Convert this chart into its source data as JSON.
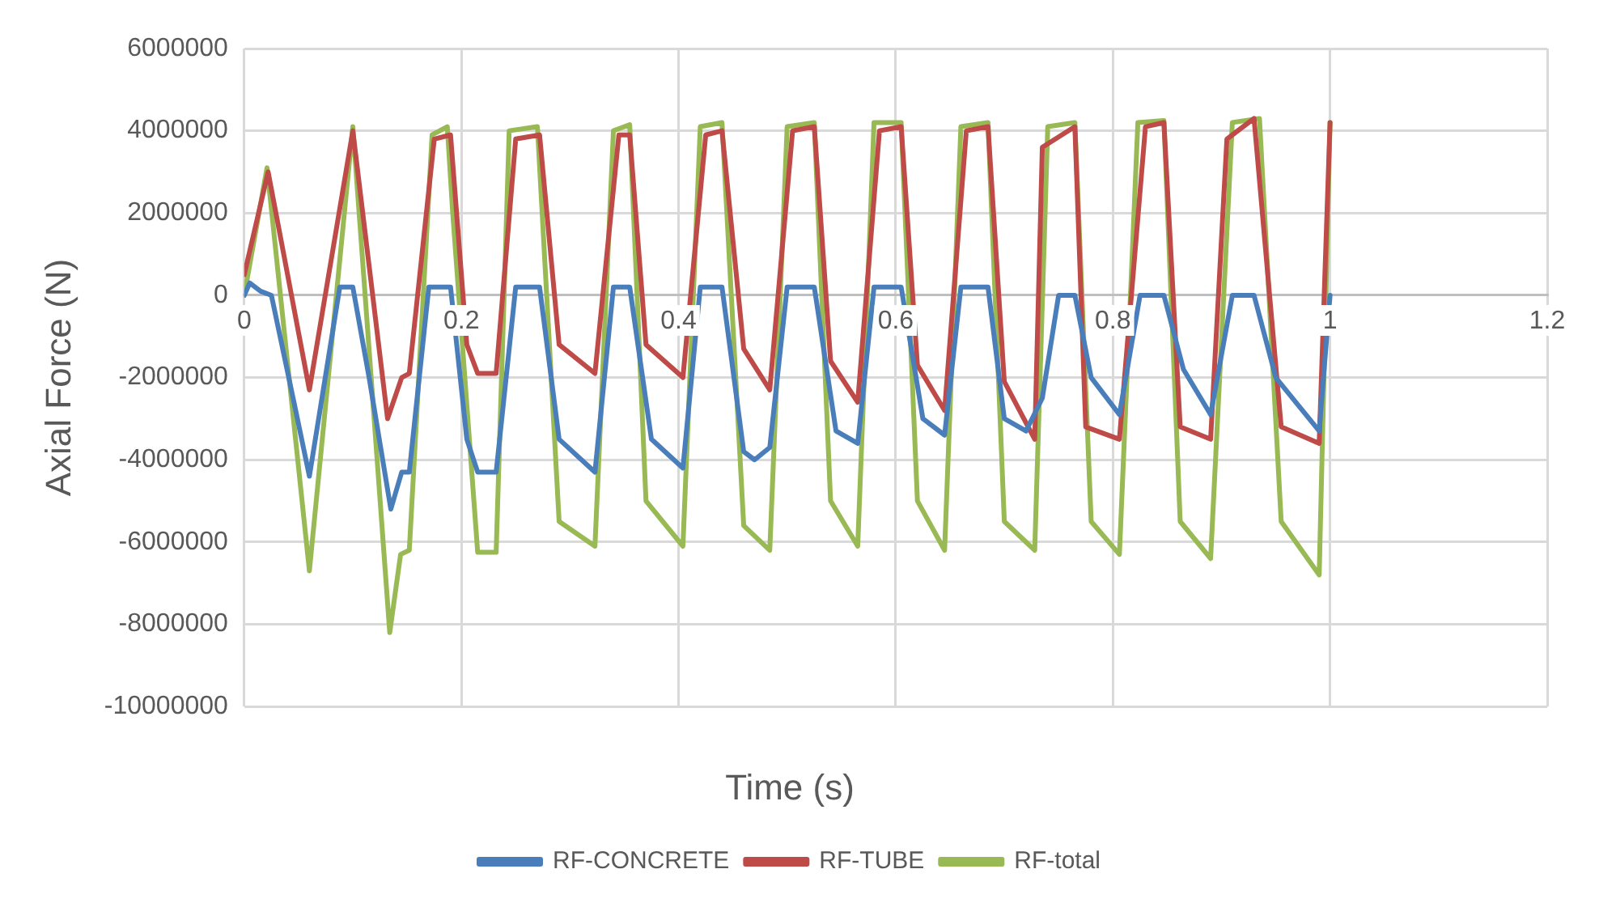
{
  "chart_data": {
    "type": "line",
    "xlabel": "Time (s)",
    "ylabel": "Axial Force (N)",
    "xlim": [
      0,
      1.2
    ],
    "xticks": [
      0,
      0.2,
      0.4,
      0.6,
      0.8,
      1,
      1.2
    ],
    "ylim": [
      -10000000,
      6000000
    ],
    "yticks": [
      -10000000,
      -8000000,
      -6000000,
      -4000000,
      -2000000,
      0,
      2000000,
      4000000,
      6000000
    ],
    "grid": true,
    "legend": "bottom",
    "marker": "none",
    "line_style": "solid",
    "series": [
      {
        "name": "RF-CONCRETE",
        "color": "#4a7ebb",
        "x": [
          0,
          0.005,
          0.015,
          0.025,
          0.045,
          0.06,
          0.088,
          0.1,
          0.115,
          0.135,
          0.145,
          0.152,
          0.17,
          0.19,
          0.205,
          0.215,
          0.232,
          0.25,
          0.272,
          0.29,
          0.323,
          0.34,
          0.355,
          0.375,
          0.404,
          0.42,
          0.44,
          0.46,
          0.47,
          0.484,
          0.5,
          0.525,
          0.545,
          0.565,
          0.58,
          0.605,
          0.625,
          0.645,
          0.66,
          0.685,
          0.7,
          0.72,
          0.735,
          0.75,
          0.765,
          0.78,
          0.806,
          0.825,
          0.847,
          0.865,
          0.89,
          0.91,
          0.93,
          0.95,
          0.99,
          1
        ],
        "values": [
          0,
          300000,
          100000,
          0,
          -2500000,
          -4400000,
          200000,
          200000,
          -2000000,
          -5200000,
          -4300000,
          -4300000,
          200000,
          200000,
          -3500000,
          -4300000,
          -4300000,
          200000,
          200000,
          -3500000,
          -4300000,
          200000,
          200000,
          -3500000,
          -4200000,
          200000,
          200000,
          -3800000,
          -4000000,
          -3700000,
          200000,
          200000,
          -3300000,
          -3600000,
          200000,
          200000,
          -3000000,
          -3400000,
          200000,
          200000,
          -3000000,
          -3300000,
          -2500000,
          0,
          0,
          -2000000,
          -2900000,
          0,
          0,
          -1800000,
          -2900000,
          0,
          0,
          -2000000,
          -3300000,
          0
        ]
      },
      {
        "name": "RF-TUBE",
        "color": "#be4b48",
        "x": [
          0,
          0.022,
          0.06,
          0.1,
          0.132,
          0.145,
          0.152,
          0.175,
          0.19,
          0.205,
          0.215,
          0.232,
          0.25,
          0.272,
          0.29,
          0.323,
          0.345,
          0.355,
          0.37,
          0.404,
          0.425,
          0.44,
          0.46,
          0.484,
          0.505,
          0.525,
          0.54,
          0.565,
          0.585,
          0.605,
          0.62,
          0.645,
          0.665,
          0.685,
          0.7,
          0.728,
          0.735,
          0.765,
          0.775,
          0.806,
          0.83,
          0.847,
          0.862,
          0.89,
          0.905,
          0.93,
          0.955,
          0.99,
          1
        ],
        "values": [
          500000,
          3000000,
          -2300000,
          4000000,
          -3000000,
          -2000000,
          -1900000,
          3800000,
          3900000,
          -1200000,
          -1900000,
          -1900000,
          3800000,
          3900000,
          -1200000,
          -1900000,
          3900000,
          3900000,
          -1200000,
          -2000000,
          3900000,
          4000000,
          -1300000,
          -2300000,
          4000000,
          4100000,
          -1600000,
          -2600000,
          4000000,
          4100000,
          -1700000,
          -2800000,
          4000000,
          4100000,
          -2100000,
          -3500000,
          3600000,
          4100000,
          -3200000,
          -3500000,
          4100000,
          4200000,
          -3200000,
          -3500000,
          3800000,
          4300000,
          -3200000,
          -3600000,
          4200000
        ]
      },
      {
        "name": "RF-total",
        "color": "#98b954",
        "x": [
          0,
          0.021,
          0.06,
          0.1,
          0.134,
          0.144,
          0.152,
          0.173,
          0.187,
          0.192,
          0.215,
          0.232,
          0.244,
          0.27,
          0.29,
          0.323,
          0.34,
          0.355,
          0.37,
          0.404,
          0.42,
          0.44,
          0.46,
          0.484,
          0.5,
          0.525,
          0.54,
          0.565,
          0.58,
          0.605,
          0.62,
          0.645,
          0.66,
          0.685,
          0.7,
          0.728,
          0.74,
          0.765,
          0.78,
          0.806,
          0.823,
          0.847,
          0.862,
          0.89,
          0.91,
          0.935,
          0.955,
          0.99,
          1
        ],
        "values": [
          0,
          3100000,
          -6700000,
          4100000,
          -8200000,
          -6300000,
          -6200000,
          3900000,
          4100000,
          2000000,
          -6250000,
          -6250000,
          4000000,
          4100000,
          -5500000,
          -6100000,
          4000000,
          4150000,
          -5000000,
          -6100000,
          4100000,
          4200000,
          -5600000,
          -6200000,
          4100000,
          4200000,
          -5000000,
          -6100000,
          4200000,
          4200000,
          -5000000,
          -6200000,
          4100000,
          4200000,
          -5500000,
          -6200000,
          4100000,
          4200000,
          -5500000,
          -6300000,
          4200000,
          4250000,
          -5500000,
          -6400000,
          4200000,
          4300000,
          -5500000,
          -6800000,
          4200000
        ]
      }
    ]
  }
}
